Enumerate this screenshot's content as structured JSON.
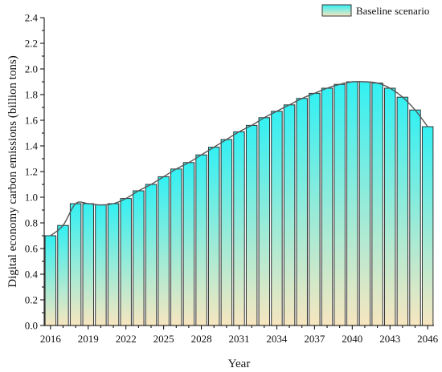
{
  "chart_data": {
    "type": "bar",
    "x": [
      2016,
      2017,
      2018,
      2019,
      2020,
      2021,
      2022,
      2023,
      2024,
      2025,
      2026,
      2027,
      2028,
      2029,
      2030,
      2031,
      2032,
      2033,
      2034,
      2035,
      2036,
      2037,
      2038,
      2039,
      2040,
      2041,
      2042,
      2043,
      2044,
      2045,
      2046
    ],
    "series": [
      {
        "name": "Baseline scenario",
        "values": [
          0.7,
          0.78,
          0.95,
          0.95,
          0.94,
          0.95,
          0.99,
          1.05,
          1.1,
          1.16,
          1.22,
          1.27,
          1.33,
          1.39,
          1.45,
          1.51,
          1.56,
          1.62,
          1.67,
          1.72,
          1.77,
          1.81,
          1.85,
          1.88,
          1.9,
          1.9,
          1.89,
          1.85,
          1.78,
          1.68,
          1.55
        ]
      }
    ],
    "xlabel": "Year",
    "ylabel": "Digital economy carbon emissions (billion tons)",
    "xticks": [
      "2016",
      "2019",
      "2022",
      "2025",
      "2028",
      "2031",
      "2034",
      "2037",
      "2040",
      "2043",
      "2046"
    ],
    "yticks": [
      "0.0",
      "0.2",
      "0.4",
      "0.6",
      "0.8",
      "1.0",
      "1.2",
      "1.4",
      "1.6",
      "1.8",
      "2.0",
      "2.2",
      "2.4"
    ],
    "ylim": [
      0,
      2.4
    ],
    "legend_position": "top-right",
    "grid": false,
    "colors": {
      "bar_top": "#33f0f3",
      "bar_bottom": "#f7e6bf",
      "bar_stroke": "#333333",
      "trend_line": "#555555"
    }
  }
}
